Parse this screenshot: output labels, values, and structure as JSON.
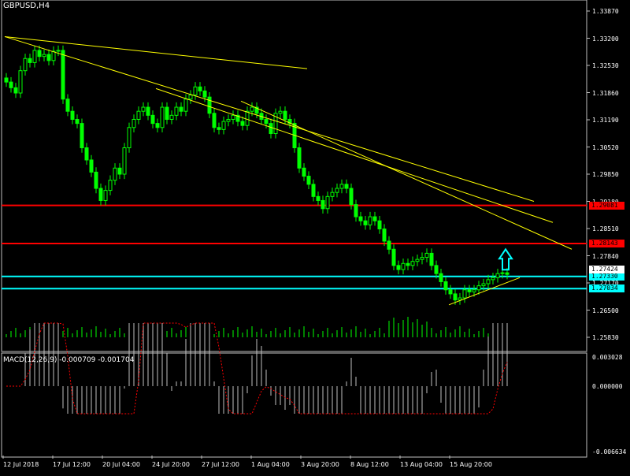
{
  "window": {
    "symbol_label": "GBPUSD,H4"
  },
  "macd": {
    "label": "MACD(12,26,9) -0.000709 -0.001704",
    "ticks": [
      "0.003028",
      "0.000000",
      "-0.006634"
    ]
  },
  "colors": {
    "background": "#000000",
    "candle": "#00ff00",
    "trendline": "#ffff00",
    "resistance": "#ff0000",
    "support": "#00ffff",
    "arrow": "#00ffff",
    "macd_hist": "#c0c0c0",
    "macd_signal": "#ff0000",
    "grid": "#ffffff"
  },
  "chart_data": {
    "type": "candlestick",
    "symbol": "GBPUSD",
    "timeframe": "H4",
    "ylim": [
      1.2583,
      1.3387
    ],
    "y_ticks": [
      "1.33870",
      "1.33200",
      "1.32530",
      "1.31860",
      "1.31190",
      "1.30520",
      "1.29850",
      "1.29180",
      "1.28510",
      "1.27840",
      "1.27170",
      "1.26500",
      "1.25830"
    ],
    "x_ticks": [
      "12 Jul 2018",
      "17 Jul 12:00",
      "20 Jul 04:00",
      "24 Jul 20:00",
      "27 Jul 12:00",
      "1 Aug 04:00",
      "3 Aug 20:00",
      "8 Aug 12:00",
      "13 Aug 04:00",
      "15 Aug 20:00"
    ],
    "horizontal_levels": [
      {
        "price": 1.2908,
        "label": "1.29081",
        "color": "#ff0000"
      },
      {
        "price": 1.2814,
        "label": "1.28143",
        "color": "#ff0000"
      },
      {
        "price": 1.2733,
        "label": "1.27330",
        "color": "#00ffff"
      },
      {
        "price": 1.2703,
        "label": "1.27034",
        "color": "#00ffff"
      }
    ],
    "current_price_label": "1.27424",
    "trendlines": [
      {
        "from": [
          0,
          1.3324
        ],
        "to": [
          64,
          1.3245
        ]
      },
      {
        "from": [
          0,
          1.3324
        ],
        "to": [
          112,
          1.2918
        ]
      },
      {
        "from": [
          32,
          1.3196
        ],
        "to": [
          116,
          1.2866
        ]
      },
      {
        "from": [
          50,
          1.3165
        ],
        "to": [
          120,
          1.28
        ]
      },
      {
        "from": [
          94,
          1.2663
        ],
        "to": [
          109,
          1.273
        ]
      }
    ],
    "arrow": {
      "index": 106,
      "price": 1.28,
      "direction": "up"
    },
    "close": [
      1.3212,
      1.3198,
      1.3185,
      1.324,
      1.327,
      1.326,
      1.329,
      1.3275,
      1.328,
      1.3265,
      1.3288,
      1.329,
      1.317,
      1.314,
      1.312,
      1.311,
      1.305,
      1.302,
      1.299,
      1.295,
      1.292,
      1.2945,
      1.297,
      1.3,
      1.2985,
      1.305,
      1.31,
      1.312,
      1.314,
      1.315,
      1.313,
      1.311,
      1.31,
      1.315,
      1.312,
      1.313,
      1.315,
      1.314,
      1.317,
      1.318,
      1.32,
      1.319,
      1.3175,
      1.3135,
      1.31,
      1.3095,
      1.3115,
      1.312,
      1.313,
      1.3115,
      1.3105,
      1.314,
      1.315,
      1.3135,
      1.312,
      1.311,
      1.3085,
      1.3135,
      1.314,
      1.312,
      1.311,
      1.305,
      1.3,
      1.298,
      1.296,
      1.293,
      1.292,
      1.29,
      1.293,
      1.294,
      1.295,
      1.296,
      1.295,
      1.291,
      1.288,
      1.287,
      1.286,
      1.288,
      1.287,
      1.285,
      1.282,
      1.28,
      1.276,
      1.275,
      1.2765,
      1.276,
      1.277,
      1.2775,
      1.278,
      1.279,
      1.276,
      1.274,
      1.272,
      1.27,
      1.269,
      1.2675,
      1.268,
      1.27,
      1.2695,
      1.27,
      1.271,
      1.2715,
      1.2725,
      1.273,
      1.274,
      1.2742,
      1.2738
    ]
  }
}
